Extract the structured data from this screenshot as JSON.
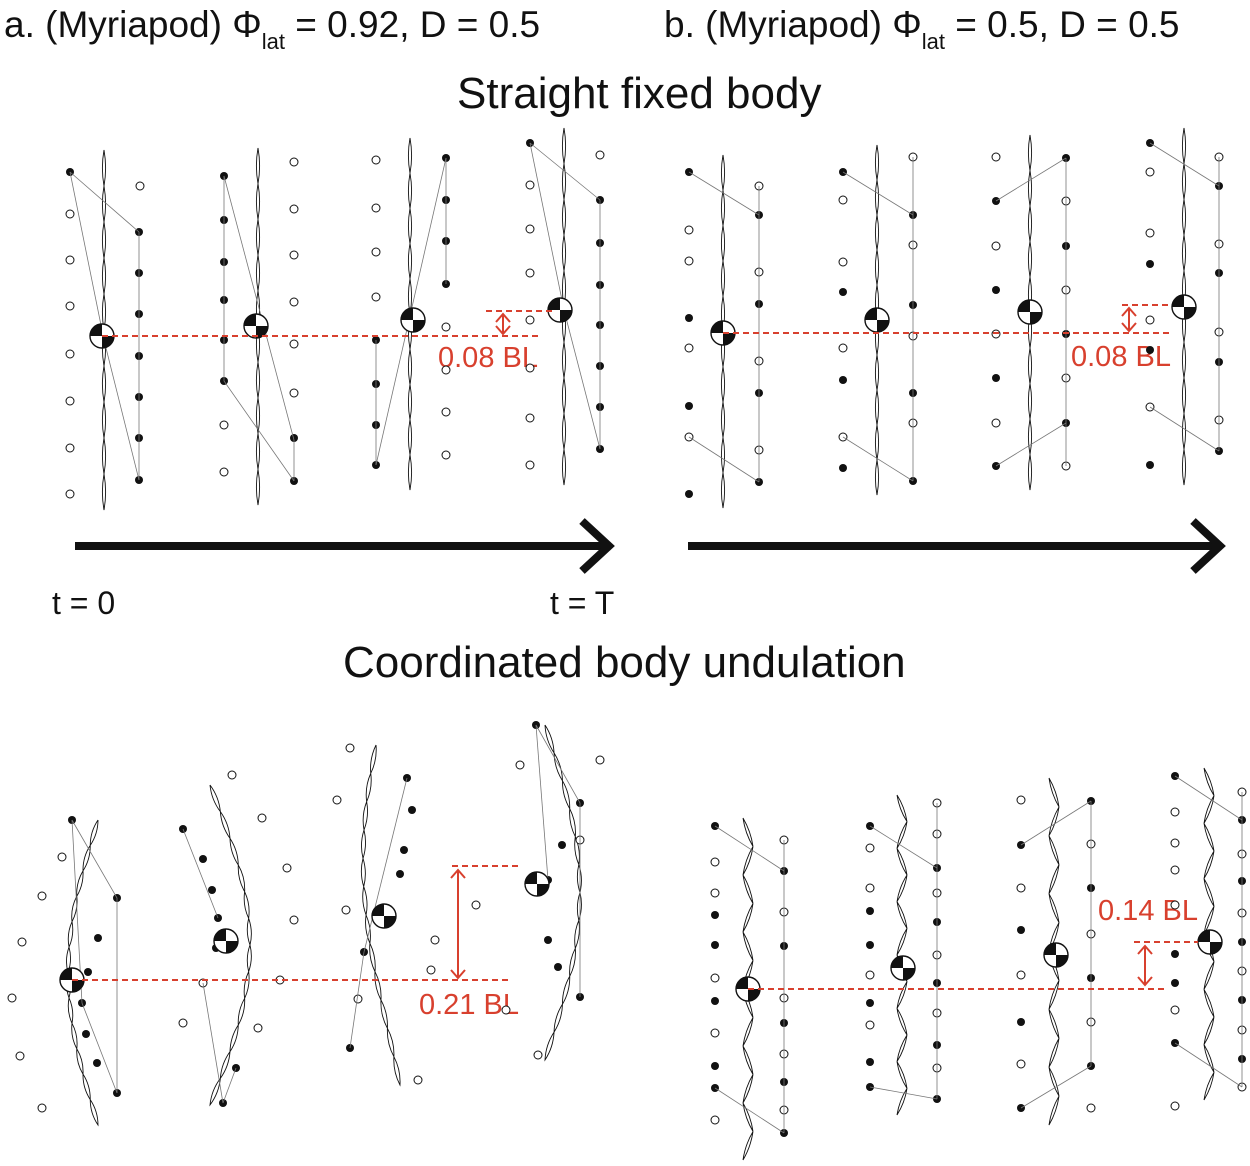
{
  "panel_a": {
    "prefix": "a. (Myriapod) Φ",
    "sub": "lat",
    "suffix": " = 0.92, D = 0.5"
  },
  "panel_b": {
    "prefix": "b. (Myriapod) Φ",
    "sub": "lat",
    "suffix": " = 0.5, D = 0.5"
  },
  "section_top": "Straight fixed body",
  "section_bottom": "Coordinated body undulation",
  "time_start": "t = 0",
  "time_end": "t = T",
  "meas_a_top": "0.08 BL",
  "meas_b_top": "0.08 BL",
  "meas_a_bottom": "0.21 BL",
  "meas_b_bottom": "0.14 BL",
  "colors": {
    "measure": "#d8402e",
    "ink": "#111111"
  }
}
